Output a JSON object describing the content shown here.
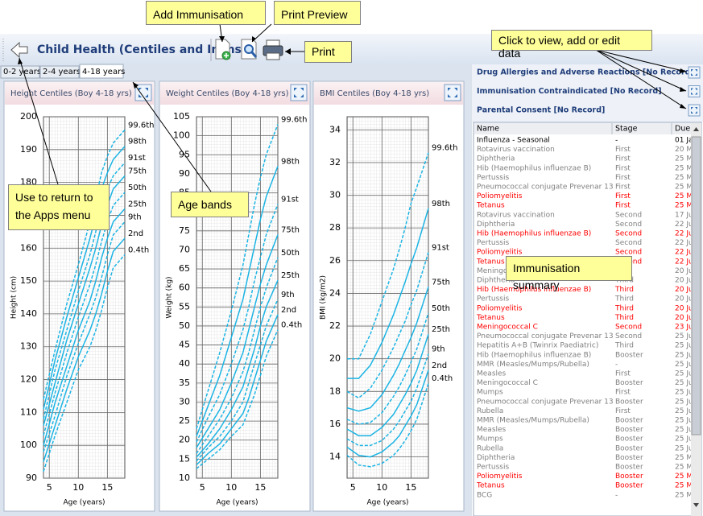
{
  "header": {
    "title": "Child Health (Centiles and Imms)"
  },
  "tabs": [
    "0-2 years",
    "2-4 years",
    "4-18 years"
  ],
  "callouts": {
    "add": "Add Immunisation",
    "preview": "Print Preview",
    "print": "Print",
    "records": "Click to view, add or edit data",
    "back": "Use to return to the Apps menu",
    "bands": "Age bands",
    "summary": "Immunisation summary"
  },
  "chart_data": [
    {
      "type": "line",
      "title": "Height Centiles (Boy 4-18 yrs)",
      "x_label": "Age (years)",
      "y_label": "Height (cm)",
      "color": "#1cb4e4",
      "grid": true,
      "xlim": [
        4,
        18
      ],
      "xticks": [
        5,
        10,
        15
      ],
      "ylim": [
        90,
        200
      ],
      "yticks": [
        90,
        100,
        110,
        120,
        130,
        140,
        150,
        160,
        170,
        180,
        190,
        200
      ],
      "x": [
        4,
        6,
        8,
        10,
        12,
        13,
        14,
        15,
        16,
        18
      ],
      "series": [
        {
          "name": "99.6th",
          "style": "dashed",
          "values": [
            114,
            129,
            143,
            155,
            168,
            175,
            183,
            188,
            192,
            196
          ]
        },
        {
          "name": "98th",
          "style": "solid",
          "values": [
            111,
            126,
            139,
            151,
            163,
            170,
            178,
            183,
            187,
            191
          ]
        },
        {
          "name": "91st",
          "style": "dashed",
          "values": [
            108,
            123,
            135,
            147,
            158,
            165,
            173,
            178,
            182,
            186
          ]
        },
        {
          "name": "75th",
          "style": "solid",
          "values": [
            106,
            119,
            132,
            143,
            154,
            160,
            167,
            173,
            178,
            182
          ]
        },
        {
          "name": "50th",
          "style": "dashed",
          "values": [
            103,
            116,
            128,
            139,
            149,
            155,
            162,
            168,
            173,
            177
          ]
        },
        {
          "name": "25th",
          "style": "solid",
          "values": [
            100,
            113,
            124,
            135,
            144,
            150,
            157,
            163,
            168,
            172
          ]
        },
        {
          "name": "9th",
          "style": "dashed",
          "values": [
            98,
            109,
            121,
            131,
            140,
            145,
            151,
            158,
            164,
            168
          ]
        },
        {
          "name": "2nd",
          "style": "solid",
          "values": [
            95,
            106,
            117,
            127,
            135,
            140,
            146,
            153,
            159,
            163
          ]
        },
        {
          "name": "0.4th",
          "style": "dashed",
          "values": [
            92,
            103,
            113,
            123,
            130,
            135,
            141,
            148,
            154,
            158
          ]
        }
      ]
    },
    {
      "type": "line",
      "title": "Weight Centiles (Boy 4-18 yrs)",
      "x_label": "Age (years)",
      "y_label": "Weight (kg)",
      "color": "#1cb4e4",
      "grid": true,
      "xlim": [
        4,
        18
      ],
      "xticks": [
        5,
        10,
        15
      ],
      "ylim": [
        10,
        105
      ],
      "yticks": [
        10,
        15,
        20,
        25,
        30,
        35,
        40,
        45,
        50,
        55,
        60,
        65,
        70,
        75,
        80,
        85,
        90,
        95,
        100,
        105
      ],
      "x": [
        4,
        6,
        8,
        10,
        12,
        13,
        14,
        15,
        16,
        18
      ],
      "series": [
        {
          "name": "99.6th",
          "style": "dashed",
          "values": [
            23,
            33,
            43,
            54,
            66,
            74,
            82,
            89,
            95,
            103
          ]
        },
        {
          "name": "98th",
          "style": "solid",
          "values": [
            21,
            29,
            37,
            47,
            57,
            64,
            71,
            78,
            84,
            92
          ]
        },
        {
          "name": "91st",
          "style": "dashed",
          "values": [
            19.5,
            26,
            32,
            40,
            49,
            55,
            62,
            68,
            74,
            82
          ]
        },
        {
          "name": "75th",
          "style": "solid",
          "values": [
            18,
            23,
            28,
            35,
            43,
            49,
            55,
            61,
            66,
            74
          ]
        },
        {
          "name": "50th",
          "style": "dashed",
          "values": [
            16.5,
            21,
            25.5,
            31,
            38,
            43,
            49,
            55,
            60,
            68
          ]
        },
        {
          "name": "25th",
          "style": "solid",
          "values": [
            15.5,
            19,
            23,
            28,
            34,
            39,
            44,
            50,
            55,
            62
          ]
        },
        {
          "name": "9th",
          "style": "dashed",
          "values": [
            14.5,
            18,
            21,
            25,
            30,
            35,
            40,
            45,
            50,
            57
          ]
        },
        {
          "name": "2nd",
          "style": "solid",
          "values": [
            13.5,
            16.5,
            19,
            23,
            27,
            31,
            36,
            41,
            46,
            53
          ]
        },
        {
          "name": "0.4th",
          "style": "dashed",
          "values": [
            12.5,
            15,
            17.5,
            21,
            24,
            28,
            32,
            37,
            42,
            49
          ]
        }
      ]
    },
    {
      "type": "line",
      "title": "BMI Centiles (Boy 4-18 yrs)",
      "x_label": "Age (years)",
      "y_label": "BMI (kg/m2)",
      "color": "#1cb4e4",
      "grid": true,
      "xlim": [
        4,
        18
      ],
      "xticks": [
        5,
        10,
        15
      ],
      "ylim": [
        12.7,
        34.8
      ],
      "yticks": [
        14,
        16,
        18,
        20,
        22,
        24,
        26,
        28,
        30,
        32,
        34
      ],
      "x": [
        4,
        6,
        8,
        10,
        12,
        13,
        14,
        15,
        16,
        18
      ],
      "series": [
        {
          "name": "99.6th",
          "style": "dashed",
          "values": [
            20,
            20,
            21.5,
            23.5,
            25.5,
            26.7,
            28,
            29.5,
            30.5,
            32.6
          ]
        },
        {
          "name": "98th",
          "style": "solid",
          "values": [
            18.8,
            18.8,
            19.6,
            21,
            22.7,
            23.7,
            24.7,
            25.8,
            26.8,
            29.2
          ]
        },
        {
          "name": "91st",
          "style": "dashed",
          "values": [
            18,
            17.6,
            18.2,
            19.3,
            20.7,
            21.5,
            22.3,
            23.3,
            24.2,
            26.5
          ]
        },
        {
          "name": "75th",
          "style": "solid",
          "values": [
            17,
            16.8,
            17,
            17.8,
            19,
            19.7,
            20.5,
            21.3,
            22.2,
            24.4
          ]
        },
        {
          "name": "50th",
          "style": "dashed",
          "values": [
            16.3,
            16,
            16.1,
            16.7,
            17.7,
            18.3,
            19,
            19.8,
            20.6,
            22.8
          ]
        },
        {
          "name": "25th",
          "style": "solid",
          "values": [
            15.7,
            15.3,
            15.3,
            15.8,
            16.6,
            17.2,
            17.8,
            18.5,
            19.3,
            21.5
          ]
        },
        {
          "name": "9th",
          "style": "dashed",
          "values": [
            15.1,
            14.7,
            14.7,
            15,
            15.7,
            16.2,
            16.8,
            17.4,
            18.2,
            20.3
          ]
        },
        {
          "name": "2nd",
          "style": "solid",
          "values": [
            14.6,
            14.1,
            14,
            14.3,
            14.9,
            15.3,
            15.9,
            16.5,
            17.2,
            19.3
          ]
        },
        {
          "name": "0.4th",
          "style": "dashed",
          "values": [
            14.1,
            13.5,
            13.4,
            13.6,
            14.1,
            14.5,
            15,
            15.6,
            16.3,
            18.5
          ]
        }
      ]
    }
  ],
  "records": [
    "Drug Allergies and Adverse Reactions [No Record]",
    "Immunisation Contraindicated [No Record]",
    "Parental Consent [No Record]"
  ],
  "table": {
    "columns": [
      "Name",
      "Stage",
      "Due"
    ],
    "rows": [
      {
        "name": "Influenza - Seasonal",
        "stage": "-",
        "due": "01 Ja",
        "color": "#000000"
      },
      {
        "name": "Rotavirus vaccination",
        "stage": "First",
        "due": "20 M",
        "color": "#808080"
      },
      {
        "name": "Diphtheria",
        "stage": "First",
        "due": "25 M",
        "color": "#808080"
      },
      {
        "name": "Hib (Haemophilus influenzae B)",
        "stage": "First",
        "due": "25 M",
        "color": "#808080"
      },
      {
        "name": "Pertussis",
        "stage": "First",
        "due": "25 M",
        "color": "#808080"
      },
      {
        "name": "Pneumococcal conjugate Prevenar 13",
        "stage": "First",
        "due": "25 M",
        "color": "#808080"
      },
      {
        "name": "Poliomyelitis",
        "stage": "First",
        "due": "25 M",
        "color": "#ff0000"
      },
      {
        "name": "Tetanus",
        "stage": "First",
        "due": "25 M",
        "color": "#ff0000"
      },
      {
        "name": "Rotavirus vaccination",
        "stage": "Second",
        "due": "17 Ju",
        "color": "#808080"
      },
      {
        "name": "Diphtheria",
        "stage": "Second",
        "due": "22 Ju",
        "color": "#808080"
      },
      {
        "name": "Hib (Haemophilus influenzae B)",
        "stage": "Second",
        "due": "22 Ju",
        "color": "#ff0000"
      },
      {
        "name": "Pertussis",
        "stage": "Second",
        "due": "22 Ju",
        "color": "#808080"
      },
      {
        "name": "Poliomyelitis",
        "stage": "Second",
        "due": "22 Ju",
        "color": "#ff0000"
      },
      {
        "name": "Tetanus",
        "stage": "Second",
        "due": "22 Ju",
        "color": "#ff0000"
      },
      {
        "name": "Meningococcal C",
        "stage": "First",
        "due": "20 Ju",
        "color": "#808080"
      },
      {
        "name": "Diphtheria",
        "stage": "Third",
        "due": "20 Ju",
        "color": "#808080"
      },
      {
        "name": "Hib (Haemophilus influenzae B)",
        "stage": "Third",
        "due": "20 Ju",
        "color": "#ff0000"
      },
      {
        "name": "Pertussis",
        "stage": "Third",
        "due": "20 Ju",
        "color": "#808080"
      },
      {
        "name": "Poliomyelitis",
        "stage": "Third",
        "due": "20 Ju",
        "color": "#ff0000"
      },
      {
        "name": "Tetanus",
        "stage": "Third",
        "due": "20 Ju",
        "color": "#ff0000"
      },
      {
        "name": "Meningococcal C",
        "stage": "Second",
        "due": "23 Ju",
        "color": "#ff0000"
      },
      {
        "name": "Pneumococcal conjugate Prevenar 13",
        "stage": "Second",
        "due": "25 Ju",
        "color": "#808080"
      },
      {
        "name": "Hepatitis A+B (Twinrix Paediatric)",
        "stage": "Third",
        "due": "25 Ju",
        "color": "#808080"
      },
      {
        "name": "Hib (Haemophilus influenzae B)",
        "stage": "Booster",
        "due": "25 Ju",
        "color": "#808080"
      },
      {
        "name": "MMR (Measles/Mumps/Rubella)",
        "stage": "-",
        "due": "25 Ju",
        "color": "#808080"
      },
      {
        "name": "Measles",
        "stage": "First",
        "due": "25 Ju",
        "color": "#808080"
      },
      {
        "name": "Meningococcal C",
        "stage": "Booster",
        "due": "25 Ju",
        "color": "#808080"
      },
      {
        "name": "Mumps",
        "stage": "First",
        "due": "25 Ju",
        "color": "#808080"
      },
      {
        "name": "Pneumococcal conjugate Prevenar 13",
        "stage": "Booster",
        "due": "25 Ju",
        "color": "#808080"
      },
      {
        "name": "Rubella",
        "stage": "First",
        "due": "25 Ju",
        "color": "#808080"
      },
      {
        "name": "MMR (Measles/Mumps/Rubella)",
        "stage": "Booster",
        "due": "25 Ju",
        "color": "#808080"
      },
      {
        "name": "Measles",
        "stage": "Booster",
        "due": "25 Ju",
        "color": "#808080"
      },
      {
        "name": "Mumps",
        "stage": "Booster",
        "due": "25 Ju",
        "color": "#808080"
      },
      {
        "name": "Rubella",
        "stage": "Booster",
        "due": "25 Ju",
        "color": "#808080"
      },
      {
        "name": "Diphtheria",
        "stage": "Booster",
        "due": "25 M",
        "color": "#808080"
      },
      {
        "name": "Pertussis",
        "stage": "Booster",
        "due": "25 M",
        "color": "#808080"
      },
      {
        "name": "Poliomyelitis",
        "stage": "Booster",
        "due": "25 M",
        "color": "#ff0000"
      },
      {
        "name": "Tetanus",
        "stage": "Booster",
        "due": "25 M",
        "color": "#ff0000"
      },
      {
        "name": "BCG",
        "stage": "-",
        "due": "25 M",
        "color": "#808080"
      }
    ]
  }
}
